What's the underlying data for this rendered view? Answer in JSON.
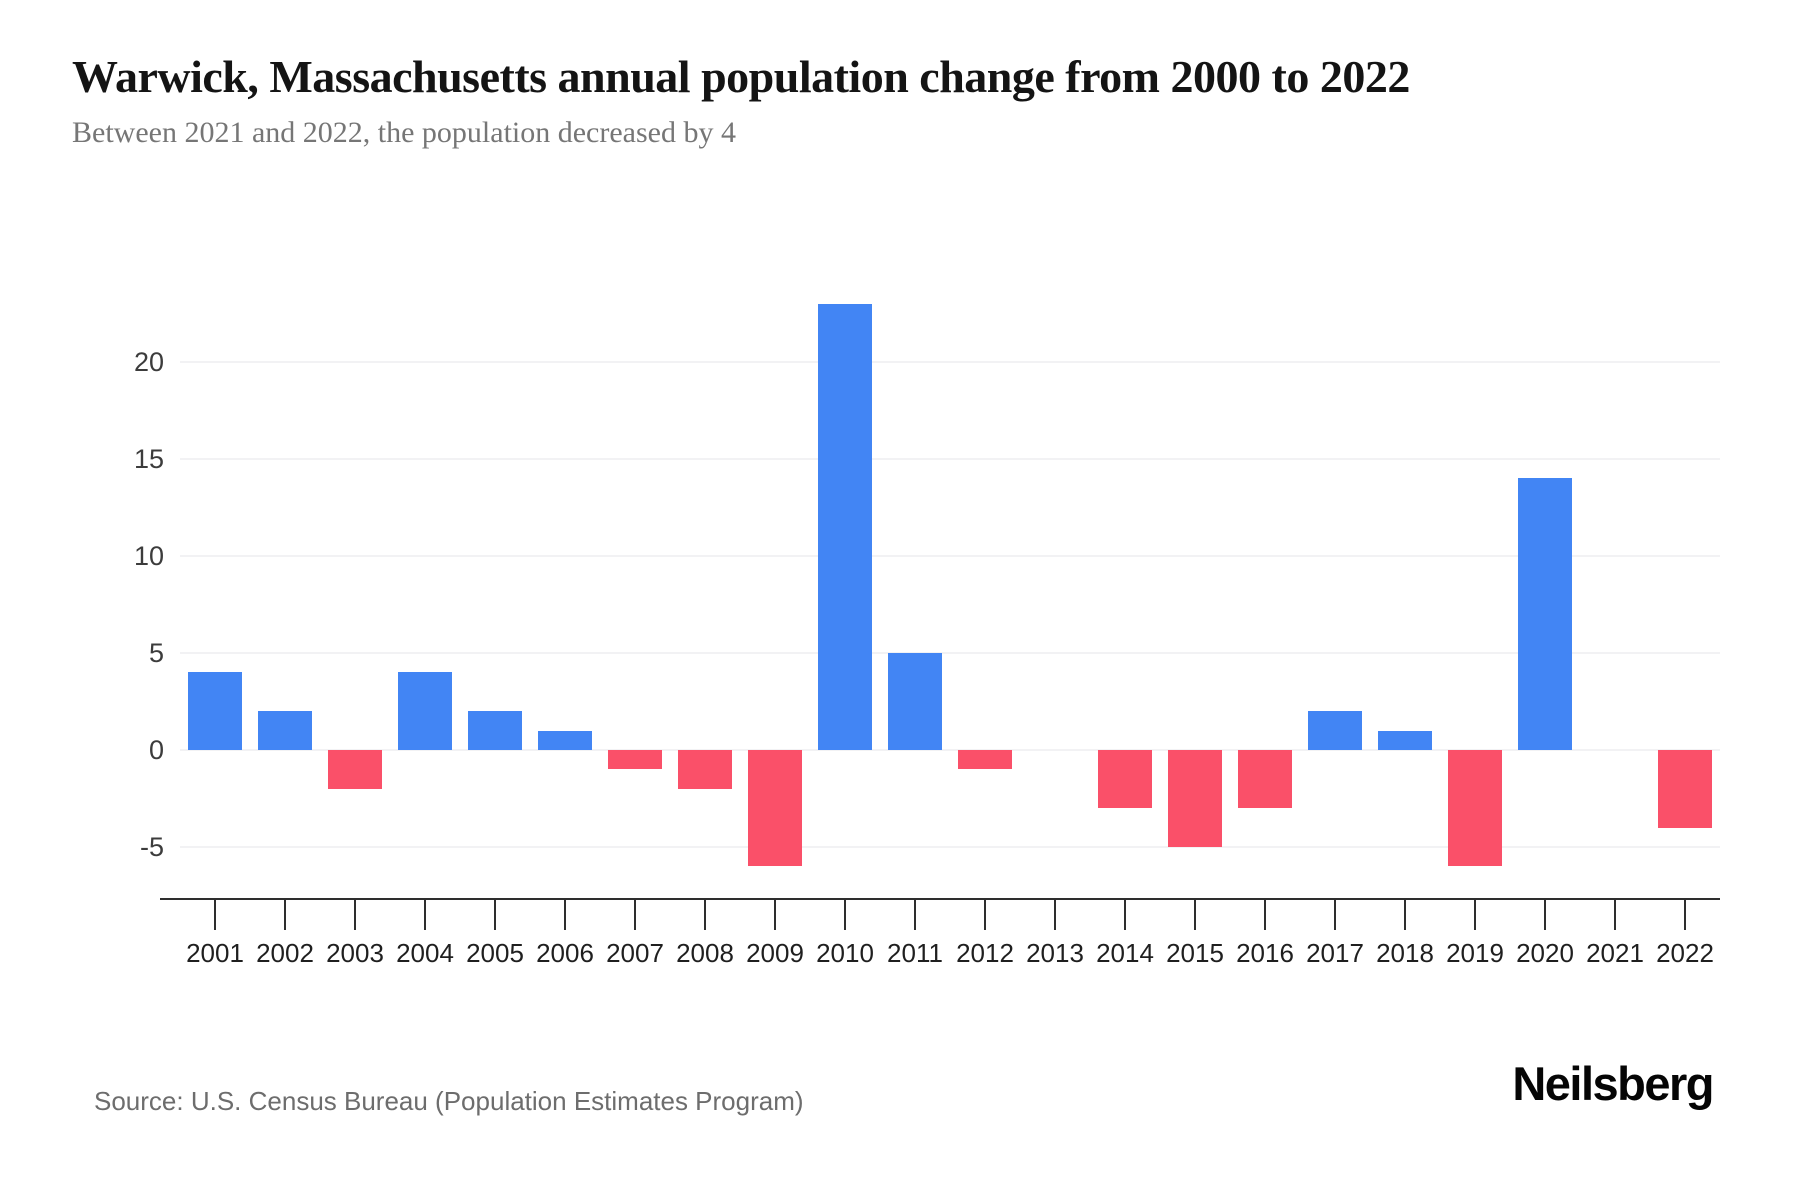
{
  "header": {
    "title": "Warwick, Massachusetts annual population change from 2000 to 2022",
    "subtitle": "Between 2021 and 2022, the population decreased by 4"
  },
  "chart_data": {
    "type": "bar",
    "title": "Warwick, Massachusetts annual population change from 2000 to 2022",
    "xlabel": "",
    "ylabel": "",
    "categories": [
      "2001",
      "2002",
      "2003",
      "2004",
      "2005",
      "2006",
      "2007",
      "2008",
      "2009",
      "2010",
      "2011",
      "2012",
      "2013",
      "2014",
      "2015",
      "2016",
      "2017",
      "2018",
      "2019",
      "2020",
      "2021",
      "2022"
    ],
    "values": [
      4,
      2,
      -2,
      4,
      2,
      1,
      -1,
      -2,
      -6,
      23,
      5,
      -1,
      0,
      -3,
      -5,
      -3,
      2,
      1,
      -6,
      14,
      0,
      -4
    ],
    "yticks": [
      20,
      15,
      10,
      5,
      0,
      -5
    ],
    "ylim": [
      -7.5,
      24
    ],
    "grid": true,
    "legend": "none",
    "positive_color": "#4285F4",
    "negative_color": "#FA5069",
    "gridline_color": "#f2f2f4",
    "axis_color": "#2e2e2e"
  },
  "footer": {
    "source": "Source: U.S. Census Bureau (Population Estimates Program)",
    "brand": "Neilsberg"
  }
}
